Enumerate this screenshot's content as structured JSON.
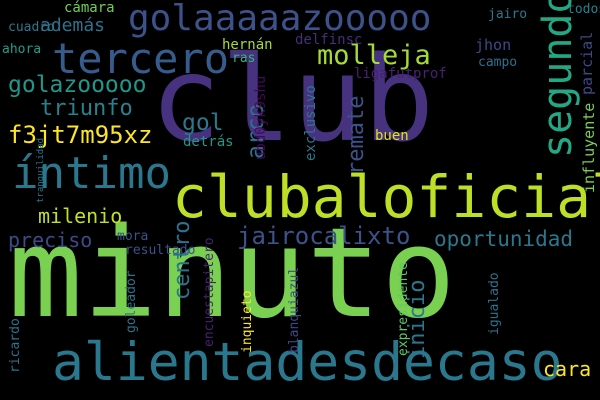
{
  "words": [
    {
      "text": "minuto",
      "color": "#7ad151"
    },
    {
      "text": "club",
      "color": "#46327e"
    },
    {
      "text": "alientadesdecaso",
      "color": "#2a788e"
    },
    {
      "text": "clubaloficial",
      "color": "#bddf26"
    },
    {
      "text": "golaaaaazooooo",
      "color": "#3b528b"
    },
    {
      "text": "tercero",
      "color": "#365c8d"
    },
    {
      "text": "segundo",
      "color": "#22a884"
    },
    {
      "text": "íntimo",
      "color": "#2a788e"
    },
    {
      "text": "f3jt7m95xz",
      "color": "#fde725"
    },
    {
      "text": "golazooooo",
      "color": "#1f988b"
    },
    {
      "text": "triunfo",
      "color": "#26828e"
    },
    {
      "text": "molleja",
      "color": "#a5db36"
    },
    {
      "text": "gol",
      "color": "#2a788e"
    },
    {
      "text": "arco",
      "color": "#2c728e"
    },
    {
      "text": "remate",
      "color": "#3b528b"
    },
    {
      "text": "jairocalixto",
      "color": "#3b528b"
    },
    {
      "text": "oportunidad",
      "color": "#2a788e"
    },
    {
      "text": "milenio",
      "color": "#c2df23"
    },
    {
      "text": "preciso",
      "color": "#3e4989"
    },
    {
      "text": "centro",
      "color": "#2c728e"
    },
    {
      "text": "inicio",
      "color": "#2a788e"
    },
    {
      "text": "cara",
      "color": "#fde725"
    },
    {
      "text": "además",
      "color": "#2c728e"
    },
    {
      "text": "cámara",
      "color": "#70cf57"
    },
    {
      "text": "cuadro",
      "color": "#2a788e"
    },
    {
      "text": "ahora",
      "color": "#1f9e89"
    },
    {
      "text": "hernán",
      "color": "#a5db36"
    },
    {
      "text": "delfinsc",
      "color": "#472d7b"
    },
    {
      "text": "ras",
      "color": "#35b779"
    },
    {
      "text": "ligafutprof",
      "color": "#482173"
    },
    {
      "text": "jhon",
      "color": "#3e4989"
    },
    {
      "text": "campo",
      "color": "#2c728e"
    },
    {
      "text": "jairo",
      "color": "#2a788e"
    },
    {
      "text": "parcial",
      "color": "#3e4989"
    },
    {
      "text": "todos",
      "color": "#26828e"
    },
    {
      "text": "influyente",
      "color": "#7ad151"
    },
    {
      "text": "buen",
      "color": "#dfe318"
    },
    {
      "text": "exclusivo",
      "color": "#2a788e"
    },
    {
      "text": "ubd0yk9shu",
      "color": "#46085c"
    },
    {
      "text": "detrás",
      "color": "#1f988b"
    },
    {
      "text": "tranquilidad",
      "color": "#2a788e"
    },
    {
      "text": "mora",
      "color": "#3b528b"
    },
    {
      "text": "resultado",
      "color": "#3b528b"
    },
    {
      "text": "goleador",
      "color": "#2c728e"
    },
    {
      "text": "encuestapitero",
      "color": "#482173"
    },
    {
      "text": "inquieto",
      "color": "#fde725"
    },
    {
      "text": "blanquiazul",
      "color": "#3e4989"
    },
    {
      "text": "expresidente",
      "color": "#5ec962"
    },
    {
      "text": "igualado",
      "color": "#2c728e"
    },
    {
      "text": "ricardo",
      "color": "#2c728e"
    }
  ]
}
